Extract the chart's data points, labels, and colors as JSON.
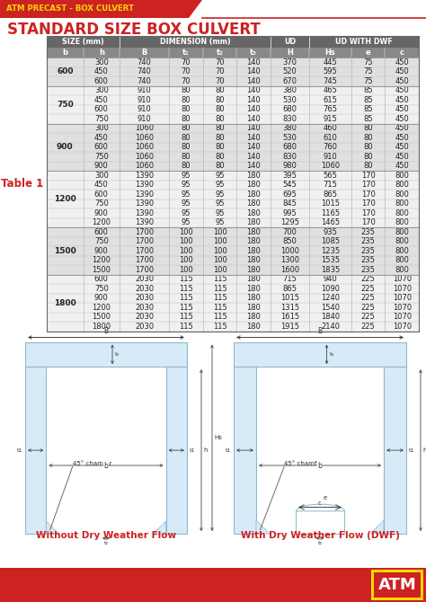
{
  "title": "STANDARD SIZE BOX CULVERT",
  "header_tag": "ATM PRECAST - BOX CULVERT",
  "table_label": "Table 1",
  "groups": [
    {
      "b": 600,
      "rows": [
        [
          300,
          740,
          70,
          70,
          140,
          370,
          445,
          75,
          450
        ],
        [
          450,
          740,
          70,
          70,
          140,
          520,
          595,
          75,
          450
        ],
        [
          600,
          740,
          70,
          70,
          140,
          670,
          745,
          75,
          450
        ]
      ]
    },
    {
      "b": 750,
      "rows": [
        [
          300,
          910,
          80,
          80,
          140,
          380,
          465,
          85,
          450
        ],
        [
          450,
          910,
          80,
          80,
          140,
          530,
          615,
          85,
          450
        ],
        [
          600,
          910,
          80,
          80,
          140,
          680,
          765,
          85,
          450
        ],
        [
          750,
          910,
          80,
          80,
          140,
          830,
          915,
          85,
          450
        ]
      ]
    },
    {
      "b": 900,
      "rows": [
        [
          300,
          1060,
          80,
          80,
          140,
          380,
          460,
          80,
          450
        ],
        [
          450,
          1060,
          80,
          80,
          140,
          530,
          610,
          80,
          450
        ],
        [
          600,
          1060,
          80,
          80,
          140,
          680,
          760,
          80,
          450
        ],
        [
          750,
          1060,
          80,
          80,
          140,
          830,
          910,
          80,
          450
        ],
        [
          900,
          1060,
          80,
          80,
          140,
          980,
          1060,
          80,
          450
        ]
      ]
    },
    {
      "b": 1200,
      "rows": [
        [
          300,
          1390,
          95,
          95,
          180,
          395,
          565,
          170,
          800
        ],
        [
          450,
          1390,
          95,
          95,
          180,
          545,
          715,
          170,
          800
        ],
        [
          600,
          1390,
          95,
          95,
          180,
          695,
          865,
          170,
          800
        ],
        [
          750,
          1390,
          95,
          95,
          180,
          845,
          1015,
          170,
          800
        ],
        [
          900,
          1390,
          95,
          95,
          180,
          995,
          1165,
          170,
          800
        ],
        [
          1200,
          1390,
          95,
          95,
          180,
          1295,
          1465,
          170,
          800
        ]
      ]
    },
    {
      "b": 1500,
      "rows": [
        [
          600,
          1700,
          100,
          100,
          180,
          700,
          935,
          235,
          800
        ],
        [
          750,
          1700,
          100,
          100,
          180,
          850,
          1085,
          235,
          800
        ],
        [
          900,
          1700,
          100,
          100,
          180,
          1000,
          1235,
          235,
          800
        ],
        [
          1200,
          1700,
          100,
          100,
          180,
          1300,
          1535,
          235,
          800
        ],
        [
          1500,
          1700,
          100,
          100,
          180,
          1600,
          1835,
          235,
          800
        ]
      ]
    },
    {
      "b": 1800,
      "rows": [
        [
          600,
          2030,
          115,
          115,
          180,
          715,
          940,
          225,
          1070
        ],
        [
          750,
          2030,
          115,
          115,
          180,
          865,
          1090,
          225,
          1070
        ],
        [
          900,
          2030,
          115,
          115,
          180,
          1015,
          1240,
          225,
          1070
        ],
        [
          1200,
          2030,
          115,
          115,
          180,
          1315,
          1540,
          225,
          1070
        ],
        [
          1500,
          2030,
          115,
          115,
          180,
          1615,
          1840,
          225,
          1070
        ],
        [
          1800,
          2030,
          115,
          115,
          180,
          1915,
          2140,
          225,
          1070
        ]
      ]
    }
  ],
  "bg_color": "#ffffff",
  "header_bg": "#cc2222",
  "header_text_color": "#f5d800",
  "title_color": "#cc2222",
  "table1_color": "#cc2222",
  "col_header_bg": "#666666",
  "col_header_bg2": "#888888",
  "row_even": "#e0e0e0",
  "row_odd": "#f0f0f0",
  "group_border": "#888888",
  "diagram_fill": "#d6eaf8",
  "diagram_edge": "#90b8cc",
  "bottom_banner": "#cc2222",
  "atm_box_bg": "#f5d800",
  "atm_text": "#cc2222"
}
